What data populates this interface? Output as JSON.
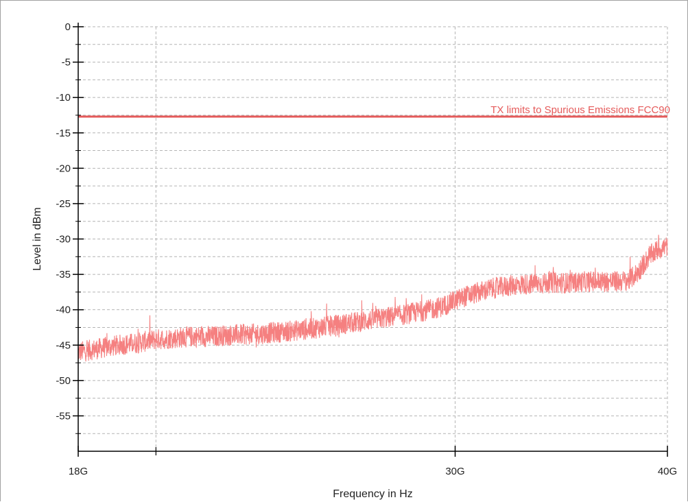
{
  "chart_data": {
    "type": "line",
    "xlabel": "Frequency in Hz",
    "ylabel": "Level in dBm",
    "x_scale": "log",
    "xlim": [
      18000000000,
      40000000000
    ],
    "ylim": [
      -60,
      0
    ],
    "x_ticks": [
      {
        "value": 18000000000,
        "label": "18G"
      },
      {
        "value": 30000000000,
        "label": "30G"
      },
      {
        "value": 40000000000,
        "label": "40G"
      }
    ],
    "x_minor_ticks": [
      20000000000
    ],
    "y_ticks": [
      {
        "value": 0,
        "label": "0"
      },
      {
        "value": -5,
        "label": "-5"
      },
      {
        "value": -10,
        "label": "-10"
      },
      {
        "value": -15,
        "label": "-15"
      },
      {
        "value": -20,
        "label": "-20"
      },
      {
        "value": -25,
        "label": "-25"
      },
      {
        "value": -30,
        "label": "-30"
      },
      {
        "value": -35,
        "label": "-35"
      },
      {
        "value": -40,
        "label": "-40"
      },
      {
        "value": -45,
        "label": "-45"
      },
      {
        "value": -50,
        "label": "-50"
      },
      {
        "value": -55,
        "label": "-55"
      }
    ],
    "y_minor_step": 2.5,
    "grid": true,
    "limit_line": {
      "label": "TX limits to Spurious Emissions FCC90",
      "value": -12.7,
      "color": "#e55a5a"
    },
    "series": [
      {
        "color": "#f58080",
        "x": [
          18000000000,
          18500000000,
          19000000000,
          19500000000,
          20000000000,
          20500000000,
          21000000000,
          21500000000,
          22000000000,
          22500000000,
          23000000000,
          23500000000,
          24000000000,
          24500000000,
          25000000000,
          25500000000,
          26000000000,
          26500000000,
          27000000000,
          27500000000,
          28000000000,
          28500000000,
          29000000000,
          29500000000,
          30000000000,
          30500000000,
          31000000000,
          31500000000,
          32000000000,
          32500000000,
          33000000000,
          33500000000,
          34000000000,
          34500000000,
          35000000000,
          35500000000,
          36000000000,
          36500000000,
          37000000000,
          37500000000,
          38000000000,
          38500000000,
          39000000000,
          39500000000,
          40000000000
        ],
        "y": [
          -46,
          -45.5,
          -45,
          -44.7,
          -44.2,
          -44,
          -43.8,
          -43.8,
          -43.6,
          -43.5,
          -43.4,
          -43.2,
          -43,
          -42.8,
          -42.5,
          -42.2,
          -41.9,
          -41.6,
          -41.3,
          -41,
          -40.7,
          -40.3,
          -40,
          -39.5,
          -38.7,
          -38,
          -37.5,
          -37,
          -36.8,
          -36.5,
          -36.4,
          -36.3,
          -36.2,
          -36.2,
          -36.2,
          -36.1,
          -36,
          -36,
          -36,
          -36,
          -35.8,
          -34.5,
          -32.5,
          -31.5,
          -31
        ]
      }
    ]
  }
}
